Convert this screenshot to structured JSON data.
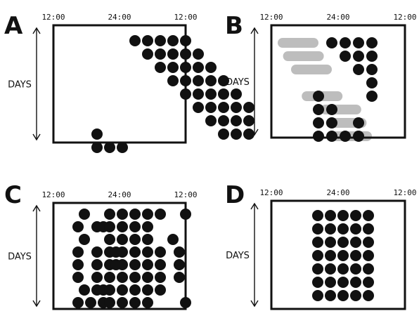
{
  "figure": {
    "y_axis_label": "DAYS",
    "x_tick_labels": [
      "12:00",
      "24:00",
      "12:00"
    ],
    "panels": [
      {
        "label": "A",
        "rows": [
          [
            3,
            4,
            5,
            6,
            7
          ],
          [
            4,
            5,
            6,
            7,
            8
          ],
          [
            5,
            6,
            7,
            8,
            9
          ],
          [
            6,
            7,
            8,
            9,
            10
          ],
          [
            7,
            8,
            9,
            10,
            11
          ],
          [
            8,
            9,
            10,
            11,
            12
          ],
          [
            9,
            10,
            11,
            12
          ],
          [
            0,
            10,
            11,
            12
          ],
          [
            0,
            1,
            2
          ]
        ],
        "bars": []
      },
      {
        "label": "B",
        "rows": [
          [
            3,
            4,
            5,
            6
          ],
          [
            4,
            5,
            6
          ],
          [
            5,
            6
          ],
          [
            6
          ],
          [
            2,
            6
          ],
          [
            2,
            3
          ],
          [
            2,
            3,
            5
          ],
          [
            2,
            3,
            4,
            5
          ]
        ],
        "bars": [
          [
            0,
            0.0,
            2.0
          ],
          [
            1,
            0.4,
            2.4
          ],
          [
            2,
            1.0,
            3.0
          ],
          [
            4,
            1.8,
            3.8
          ],
          [
            5,
            3.2,
            5.2
          ],
          [
            6,
            3.6,
            5.6
          ],
          [
            7,
            4.0,
            6.0
          ]
        ]
      },
      {
        "label": "C",
        "rows": [
          [
            1,
            3,
            4,
            5,
            6,
            7,
            9
          ],
          [
            0.5,
            2,
            2.5,
            3,
            4,
            5,
            6
          ],
          [
            1,
            3,
            4,
            5,
            6,
            8
          ],
          [
            0.5,
            2,
            3,
            3.5,
            4,
            5,
            6,
            7,
            8.5
          ],
          [
            0.5,
            2,
            3,
            3.5,
            4,
            5,
            6,
            7,
            8.5
          ],
          [
            0.5,
            2,
            3,
            4,
            5,
            6,
            7,
            8.5
          ],
          [
            1,
            2,
            2.5,
            3,
            4,
            5,
            6,
            7
          ],
          [
            0.5,
            1.5,
            2.5,
            3,
            4,
            5,
            6,
            9
          ]
        ],
        "bars": []
      },
      {
        "label": "D",
        "rows": [
          [
            0,
            1,
            2,
            3,
            4
          ],
          [
            0,
            1,
            2,
            3,
            4
          ],
          [
            0,
            1,
            2,
            3,
            4
          ],
          [
            0,
            1,
            2,
            3,
            4
          ],
          [
            0,
            1,
            2,
            3,
            4
          ],
          [
            0,
            1,
            2,
            3,
            4
          ],
          [
            0,
            1,
            2,
            3,
            4
          ]
        ],
        "bars": []
      }
    ]
  }
}
